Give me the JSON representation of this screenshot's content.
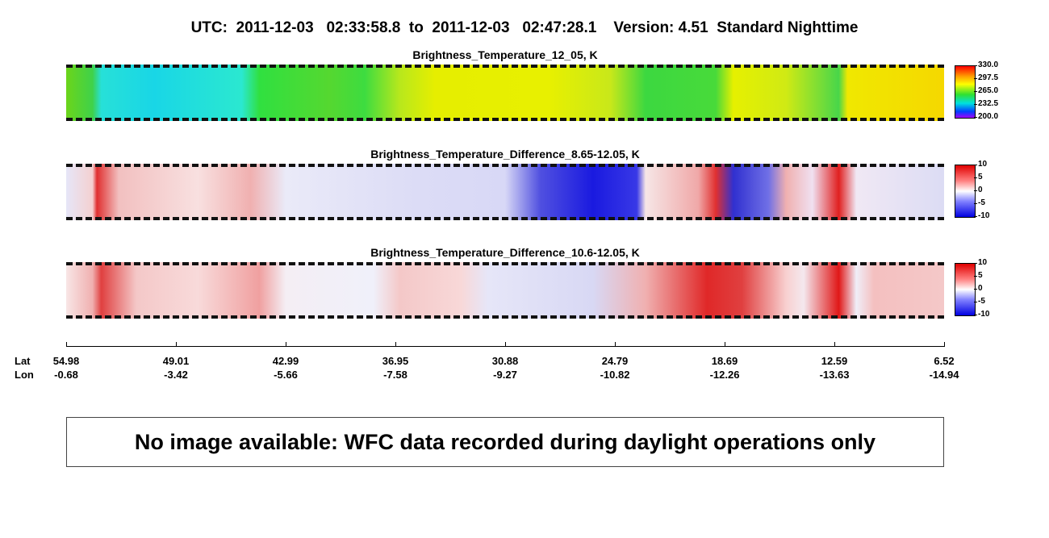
{
  "header": {
    "title": "UTC:  2011-12-03   02:33:58.8  to  2011-12-03   02:47:28.1    Version: 4.51  Standard Nighttime"
  },
  "panels": [
    {
      "title": "Brightness_Temperature_12_05, K",
      "colorbar_ticks": [
        "330.0",
        "297.5",
        "265.0",
        "232.5",
        "200.0"
      ]
    },
    {
      "title": "Brightness_Temperature_Difference_8.65-12.05, K",
      "colorbar_ticks": [
        "10",
        "5",
        "0",
        "-5",
        "-10"
      ]
    },
    {
      "title": "Brightness_Temperature_Difference_10.6-12.05, K",
      "colorbar_ticks": [
        "10",
        "5",
        "0",
        "-5",
        "-10"
      ]
    }
  ],
  "axis": {
    "row_labels": [
      "Lat",
      "Lon"
    ],
    "ticks": [
      {
        "lat": "54.98",
        "lon": "-0.68"
      },
      {
        "lat": "49.01",
        "lon": "-3.42"
      },
      {
        "lat": "42.99",
        "lon": "-5.66"
      },
      {
        "lat": "36.95",
        "lon": "-7.58"
      },
      {
        "lat": "30.88",
        "lon": "-9.27"
      },
      {
        "lat": "24.79",
        "lon": "-10.82"
      },
      {
        "lat": "18.69",
        "lon": "-12.26"
      },
      {
        "lat": "12.59",
        "lon": "-13.63"
      },
      {
        "lat": "6.52",
        "lon": "-14.94"
      }
    ]
  },
  "message": "No image available: WFC data recorded during daylight operations only"
}
